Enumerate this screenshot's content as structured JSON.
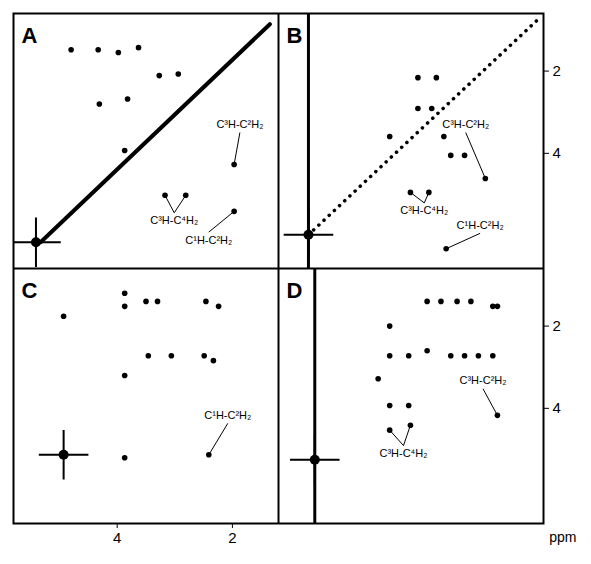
{
  "chart_data": [
    {
      "type": "scatter",
      "title": "A",
      "xlim": [
        5.8,
        1.2
      ],
      "ylim": [
        0.6,
        6.8
      ],
      "tick_labels": false,
      "diagonal": {
        "x": [
          5.33,
          1.35
        ],
        "y": [
          6.16,
          0.86
        ],
        "line_style": "solid"
      },
      "peaks": {
        "x": [
          4.8,
          4.33,
          3.98,
          3.63,
          3.27,
          2.94,
          4.31,
          3.82,
          3.87,
          3.17,
          2.81,
          1.97,
          1.97
        ],
        "y": [
          1.48,
          1.48,
          1.55,
          1.43,
          2.11,
          2.07,
          2.8,
          2.68,
          3.93,
          5.02,
          5.02,
          4.27,
          5.41
        ]
      },
      "water": {
        "x": 5.41,
        "y": 6.16
      },
      "annotations": [
        {
          "text": "C³H-C⁴H₂",
          "x": 3.01,
          "y": 5.64,
          "targets": [
            {
              "x": 3.17,
              "y": 5.02
            },
            {
              "x": 2.81,
              "y": 5.02
            }
          ]
        },
        {
          "text": "C³H-C²H₂",
          "x": 1.87,
          "y": 3.3,
          "targets": [
            {
              "x": 1.97,
              "y": 4.27
            }
          ]
        },
        {
          "text": "C¹H-C²H₂",
          "x": 2.41,
          "y": 6.11,
          "targets": [
            {
              "x": 1.97,
              "y": 5.41
            }
          ]
        }
      ]
    },
    {
      "type": "scatter",
      "title": "B",
      "xlim": [
        5.8,
        1.2
      ],
      "ylim": [
        0.6,
        6.8
      ],
      "yticks": [
        2,
        4
      ],
      "tick_labels": "y",
      "diagonal": {
        "x": [
          5.28,
          1.3
        ],
        "y": [
          5.98,
          0.75
        ],
        "line_style": "dotted"
      },
      "peaks": {
        "x": [
          3.87,
          3.38,
          3.14,
          2.93,
          2.81,
          2.57,
          3.38,
          3.06,
          3.51,
          3.19,
          2.21,
          2.89
        ],
        "y": [
          3.59,
          2.91,
          2.91,
          3.59,
          4.05,
          4.05,
          2.16,
          2.16,
          4.95,
          4.95,
          4.61,
          6.32
        ]
      },
      "water": {
        "x": 5.28,
        "y": 5.98
      },
      "streak_x": 5.28,
      "annotations": [
        {
          "text": "C³H-C⁴H₂",
          "x": 3.27,
          "y": 5.4,
          "targets": [
            {
              "x": 3.51,
              "y": 4.95
            },
            {
              "x": 3.19,
              "y": 4.95
            }
          ]
        },
        {
          "text": "C³H-C²H₂",
          "x": 2.55,
          "y": 3.3,
          "targets": [
            {
              "x": 2.21,
              "y": 4.61
            }
          ]
        },
        {
          "text": "C¹H-C²H₂",
          "x": 2.3,
          "y": 5.75,
          "targets": [
            {
              "x": 2.89,
              "y": 6.32
            }
          ]
        }
      ]
    },
    {
      "type": "scatter",
      "title": "C",
      "xlim": [
        5.8,
        1.2
      ],
      "ylim": [
        0.6,
        6.8
      ],
      "xticks": [
        4,
        2
      ],
      "tick_labels": "x",
      "peaks": {
        "x": [
          4.93,
          3.87,
          3.87,
          3.5,
          3.3,
          2.46,
          2.24,
          3.46,
          3.06,
          2.49,
          2.33,
          3.87,
          3.87,
          2.41
        ],
        "y": [
          1.76,
          1.2,
          1.52,
          1.4,
          1.4,
          1.4,
          1.52,
          2.72,
          2.72,
          2.72,
          2.84,
          3.2,
          5.2,
          5.13
        ]
      },
      "water": {
        "x": 4.93,
        "y": 5.13
      },
      "annotations": [
        {
          "text": "C¹H-C²H₂",
          "x": 2.08,
          "y": 4.17,
          "targets": [
            {
              "x": 2.41,
              "y": 5.13
            }
          ]
        }
      ]
    },
    {
      "type": "scatter",
      "title": "D",
      "xlim": [
        5.8,
        1.2
      ],
      "ylim": [
        0.6,
        6.8
      ],
      "yticks": [
        2,
        4
      ],
      "tick_labels": "y",
      "ylabel": "ppm",
      "peaks": {
        "x": [
          3.87,
          3.22,
          2.98,
          2.7,
          2.46,
          2.08,
          2.0,
          3.87,
          3.54,
          3.22,
          2.81,
          2.57,
          2.33,
          2.08,
          4.07,
          3.87,
          3.54,
          3.87,
          3.51,
          2.0
        ],
        "y": [
          2.0,
          1.4,
          1.4,
          1.4,
          1.4,
          1.52,
          1.52,
          2.72,
          2.72,
          2.6,
          2.72,
          2.72,
          2.72,
          2.72,
          3.28,
          3.93,
          3.93,
          4.53,
          4.41,
          4.17
        ]
      },
      "water": {
        "x": 5.17,
        "y": 5.25
      },
      "streak_x": 5.17,
      "annotations": [
        {
          "text": "C³H-C²H₂",
          "x": 2.25,
          "y": 3.33,
          "targets": [
            {
              "x": 2.0,
              "y": 4.17
            }
          ]
        },
        {
          "text": "C³H-C⁴H₂",
          "x": 3.63,
          "y": 5.1,
          "targets": [
            {
              "x": 3.87,
              "y": 4.53
            },
            {
              "x": 3.51,
              "y": 4.41
            }
          ]
        }
      ]
    }
  ]
}
